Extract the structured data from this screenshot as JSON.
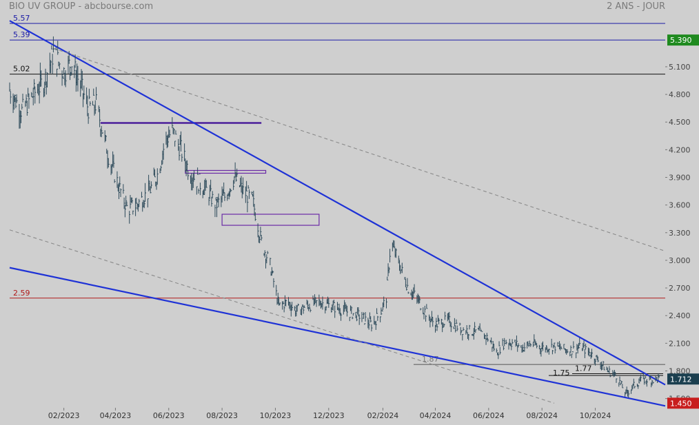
{
  "header": {
    "title": "BIO UV GROUP - abcbourse.com",
    "period": "2 ANS - JOUR"
  },
  "chart_data": {
    "type": "ohlc",
    "ylim": [
      1.4,
      5.66
    ],
    "y_ticks": [
      "1.500",
      "1.800",
      "2.100",
      "2.400",
      "2.700",
      "3.000",
      "3.300",
      "3.600",
      "3.900",
      "4.200",
      "4.500",
      "4.800",
      "5.100"
    ],
    "x_ticks": [
      "02/2023",
      "04/2023",
      "06/2023",
      "08/2023",
      "10/2023",
      "12/2023",
      "02/2024",
      "04/2024",
      "06/2024",
      "08/2024",
      "10/2024"
    ],
    "price_labels": [
      {
        "value": 5.39,
        "text": "5.390",
        "color": "#1f8a1f"
      },
      {
        "value": 1.712,
        "text": "1.712",
        "color": "#1b3f4f"
      },
      {
        "value": 1.45,
        "text": "1.450",
        "color": "#c81e1e"
      }
    ],
    "horizontal_levels": [
      {
        "value": 5.57,
        "label": "5.57",
        "color": "#1a1aa6"
      },
      {
        "value": 5.39,
        "label": "5.39",
        "color": "#1a1aa6"
      },
      {
        "value": 5.02,
        "label": "5.02",
        "color": "#111111"
      },
      {
        "value": 2.59,
        "label": "2.59",
        "color": "#b01818"
      },
      {
        "value": 1.87,
        "label": "1.87",
        "color": "#555555"
      },
      {
        "value": 1.77,
        "label": "1.77",
        "color": "#111111"
      },
      {
        "value": 1.75,
        "label": "1.75",
        "color": "#111111"
      }
    ],
    "trendlines": [
      {
        "role": "upper",
        "from": [
          "2022-12-01",
          5.6
        ],
        "to": [
          "2024-12-20",
          1.65
        ],
        "color": "#1e32d6",
        "style": "solid"
      },
      {
        "role": "lower",
        "from": [
          "2022-12-01",
          2.92
        ],
        "to": [
          "2024-12-20",
          1.42
        ],
        "color": "#1e32d6",
        "style": "solid"
      },
      {
        "role": "upper-parallel",
        "from": [
          "2023-01-20",
          5.3
        ],
        "to": [
          "2024-12-20",
          3.1
        ],
        "color": "#8a8a8a",
        "style": "dashed"
      },
      {
        "role": "lower-parallel",
        "from": [
          "2022-12-01",
          3.33
        ],
        "to": [
          "2024-08-15",
          1.45
        ],
        "color": "#8a8a8a",
        "style": "dashed"
      }
    ],
    "zones": [
      {
        "from": "2023-03-15",
        "to": "2023-09-15",
        "value": 4.49,
        "kind": "line",
        "color": "#4a1e9a"
      },
      {
        "from": "2023-06-20",
        "to": "2023-09-20",
        "low": 3.945,
        "high": 3.975,
        "kind": "box",
        "color": "#6a2aa6"
      },
      {
        "from": "2023-08-01",
        "to": "2023-11-20",
        "low": 3.38,
        "high": 3.5,
        "kind": "box",
        "color": "#6a2aa6"
      }
    ],
    "series": [
      {
        "type": "close",
        "points": [
          [
            "2022-12-01",
            4.85
          ],
          [
            "2022-12-15",
            4.62
          ],
          [
            "2023-01-01",
            4.85
          ],
          [
            "2023-01-10",
            4.95
          ],
          [
            "2023-01-20",
            5.25
          ],
          [
            "2023-02-01",
            5.05
          ],
          [
            "2023-02-10",
            5.15
          ],
          [
            "2023-02-20",
            4.9
          ],
          [
            "2023-03-01",
            4.65
          ],
          [
            "2023-03-10",
            4.7
          ],
          [
            "2023-03-15",
            4.5
          ],
          [
            "2023-03-25",
            4.1
          ],
          [
            "2023-04-05",
            3.8
          ],
          [
            "2023-04-15",
            3.55
          ],
          [
            "2023-04-25",
            3.6
          ],
          [
            "2023-05-10",
            3.75
          ],
          [
            "2023-05-20",
            3.95
          ],
          [
            "2023-05-28",
            4.3
          ],
          [
            "2023-06-05",
            4.4
          ],
          [
            "2023-06-15",
            4.2
          ],
          [
            "2023-06-25",
            3.95
          ],
          [
            "2023-07-05",
            3.85
          ],
          [
            "2023-07-15",
            3.75
          ],
          [
            "2023-07-25",
            3.6
          ],
          [
            "2023-08-05",
            3.7
          ],
          [
            "2023-08-15",
            3.9
          ],
          [
            "2023-08-25",
            3.75
          ],
          [
            "2023-09-05",
            3.65
          ],
          [
            "2023-09-15",
            3.2
          ],
          [
            "2023-09-25",
            2.95
          ],
          [
            "2023-10-05",
            2.5
          ],
          [
            "2023-10-15",
            2.55
          ],
          [
            "2023-10-25",
            2.45
          ],
          [
            "2023-11-05",
            2.5
          ],
          [
            "2023-11-20",
            2.55
          ],
          [
            "2023-12-05",
            2.5
          ],
          [
            "2023-12-20",
            2.45
          ],
          [
            "2024-01-05",
            2.4
          ],
          [
            "2024-01-20",
            2.3
          ],
          [
            "2024-01-30",
            2.45
          ],
          [
            "2024-02-05",
            2.6
          ],
          [
            "2024-02-10",
            3.2
          ],
          [
            "2024-02-20",
            2.95
          ],
          [
            "2024-03-01",
            2.7
          ],
          [
            "2024-03-10",
            2.6
          ],
          [
            "2024-03-20",
            2.45
          ],
          [
            "2024-04-01",
            2.3
          ],
          [
            "2024-04-15",
            2.35
          ],
          [
            "2024-05-01",
            2.25
          ],
          [
            "2024-05-20",
            2.22
          ],
          [
            "2024-06-01",
            2.15
          ],
          [
            "2024-06-10",
            2.0
          ],
          [
            "2024-06-20",
            2.12
          ],
          [
            "2024-07-01",
            2.1
          ],
          [
            "2024-07-10",
            2.05
          ],
          [
            "2024-07-20",
            2.1
          ],
          [
            "2024-08-01",
            2.05
          ],
          [
            "2024-08-15",
            2.07
          ],
          [
            "2024-09-01",
            2.02
          ],
          [
            "2024-09-15",
            2.06
          ],
          [
            "2024-10-01",
            1.95
          ],
          [
            "2024-10-15",
            1.8
          ],
          [
            "2024-10-25",
            1.75
          ],
          [
            "2024-11-05",
            1.55
          ],
          [
            "2024-11-15",
            1.65
          ],
          [
            "2024-11-25",
            1.71
          ],
          [
            "2024-12-05",
            1.7
          ],
          [
            "2024-12-15",
            1.72
          ]
        ]
      }
    ]
  }
}
